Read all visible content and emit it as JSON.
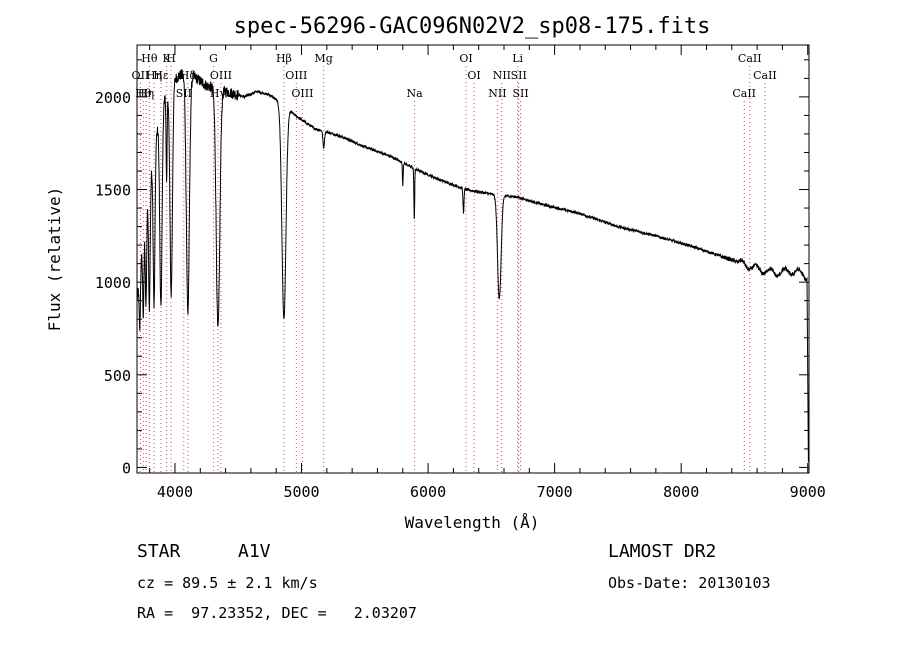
{
  "chart_data": {
    "type": "line",
    "title": "spec-56296-GAC096N02V2_sp08-175.fits",
    "xlabel": "Wavelength (Å)",
    "ylabel": "Flux (relative)",
    "xlim": [
      3700,
      9010
    ],
    "ylim": [
      -30,
      2280
    ],
    "xticks": [
      4000,
      5000,
      6000,
      7000,
      8000,
      9000
    ],
    "xtick_labels": [
      "4000",
      "5000",
      "6000",
      "7000",
      "8000",
      "9000"
    ],
    "yticks": [
      0,
      500,
      1000,
      1500,
      2000
    ],
    "ytick_labels": [
      "0",
      "500",
      "1000",
      "1500",
      "2000"
    ],
    "continuum": [
      [
        3700,
        900
      ],
      [
        3760,
        1300
      ],
      [
        3840,
        1750
      ],
      [
        3900,
        1950
      ],
      [
        3960,
        2080
      ],
      [
        4050,
        2120
      ],
      [
        4150,
        2110
      ],
      [
        4250,
        2060
      ],
      [
        4400,
        2030
      ],
      [
        4550,
        2000
      ],
      [
        4650,
        2030
      ],
      [
        4750,
        2010
      ],
      [
        4850,
        1960
      ],
      [
        4950,
        1900
      ],
      [
        5100,
        1830
      ],
      [
        5300,
        1790
      ],
      [
        5500,
        1730
      ],
      [
        5700,
        1680
      ],
      [
        5900,
        1610
      ],
      [
        6100,
        1550
      ],
      [
        6300,
        1500
      ],
      [
        6500,
        1475
      ],
      [
        6700,
        1460
      ],
      [
        6900,
        1420
      ],
      [
        7200,
        1370
      ],
      [
        7500,
        1300
      ],
      [
        7800,
        1250
      ],
      [
        8100,
        1190
      ],
      [
        8400,
        1120
      ],
      [
        8600,
        1070
      ],
      [
        8750,
        1050
      ],
      [
        8900,
        1060
      ],
      [
        8990,
        1030
      ]
    ],
    "absorption": [
      {
        "w": 3722,
        "depth": 300,
        "width": 5
      },
      {
        "w": 3750,
        "depth": 420,
        "width": 5
      },
      {
        "w": 3771,
        "depth": 500,
        "width": 5
      },
      {
        "w": 3798,
        "depth": 650,
        "width": 6
      },
      {
        "w": 3835,
        "depth": 850,
        "width": 7
      },
      {
        "w": 3889,
        "depth": 1050,
        "width": 9
      },
      {
        "w": 3934,
        "depth": 500,
        "width": 4
      },
      {
        "w": 3970,
        "depth": 1150,
        "width": 10
      },
      {
        "w": 4102,
        "depth": 1280,
        "width": 12
      },
      {
        "w": 4340,
        "depth": 1300,
        "width": 14
      },
      {
        "w": 4861,
        "depth": 1150,
        "width": 16
      },
      {
        "w": 5175,
        "depth": 90,
        "width": 6
      },
      {
        "w": 5800,
        "depth": 120,
        "width": 3
      },
      {
        "w": 5891,
        "depth": 280,
        "width": 3
      },
      {
        "w": 6280,
        "depth": 130,
        "width": 4
      },
      {
        "w": 6563,
        "depth": 560,
        "width": 14
      }
    ],
    "endpoint": {
      "x": 9005,
      "y": 30
    },
    "line_markers": [
      {
        "label": "Hθ",
        "wavelength": 3798,
        "row": 0
      },
      {
        "label": "K",
        "wavelength": 3934,
        "row": 0
      },
      {
        "label": "H",
        "wavelength": 3969,
        "row": 0
      },
      {
        "label": "G",
        "wavelength": 4305,
        "row": 0
      },
      {
        "label": "Hβ",
        "wavelength": 4861,
        "row": 0
      },
      {
        "label": "Mg",
        "wavelength": 5175,
        "row": 0
      },
      {
        "label": "OI",
        "wavelength": 6300,
        "row": 0
      },
      {
        "label": "Li",
        "wavelength": 6708,
        "row": 0
      },
      {
        "label": "CaII",
        "wavelength": 8542,
        "row": 0
      },
      {
        "label": "OII",
        "wavelength": 3727,
        "row": 1
      },
      {
        "label": "Hη",
        "wavelength": 3835,
        "row": 1
      },
      {
        "label": "Hε",
        "wavelength": 3889,
        "row": 1
      },
      {
        "label": "Hδ",
        "wavelength": 4102,
        "row": 1
      },
      {
        "label": "OIII",
        "wavelength": 4363,
        "row": 1
      },
      {
        "label": "OIII",
        "wavelength": 4959,
        "row": 1
      },
      {
        "label": "OI",
        "wavelength": 6363,
        "row": 1
      },
      {
        "label": "NII",
        "wavelength": 6583,
        "row": 1
      },
      {
        "label": "SII",
        "wavelength": 6716,
        "row": 1
      },
      {
        "label": "CaII",
        "wavelength": 8662,
        "row": 1
      },
      {
        "label": "Hθ",
        "wavelength": 3750,
        "row": 2
      },
      {
        "label": "Hη",
        "wavelength": 3771,
        "row": 2
      },
      {
        "label": "SII",
        "wavelength": 4070,
        "row": 2
      },
      {
        "label": "Hγ",
        "wavelength": 4340,
        "row": 2
      },
      {
        "label": "OIII",
        "wavelength": 5007,
        "row": 2
      },
      {
        "label": "Na",
        "wavelength": 5893,
        "row": 2
      },
      {
        "label": "NII",
        "wavelength": 6548,
        "row": 2
      },
      {
        "label": "SII",
        "wavelength": 6731,
        "row": 2
      },
      {
        "label": "CaII",
        "wavelength": 8498,
        "row": 2
      }
    ]
  },
  "info": {
    "class_label": "STAR",
    "subclass": "A1V",
    "survey": "LAMOST DR2",
    "cz": "cz = 89.5 ± 2.1 km/s",
    "obs_date": "Obs-Date: 20130103",
    "coords": "RA =  97.23352, DEC =   2.03207"
  }
}
